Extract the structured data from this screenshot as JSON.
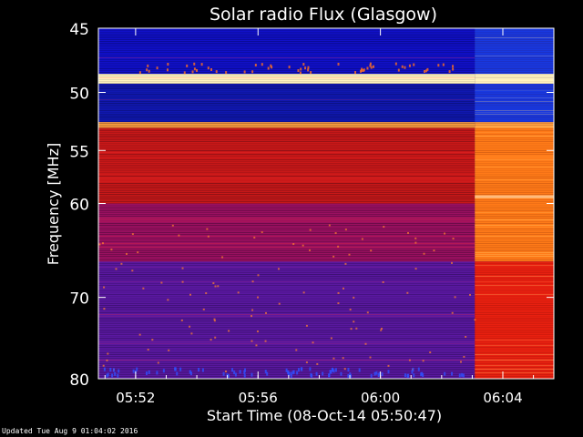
{
  "chart_data": {
    "type": "heatmap",
    "title": "Solar radio Flux (Glasgow)",
    "ylabel": "Frequency [MHz]",
    "xlabel": "Start Time (08-Oct-14 05:50:47)",
    "ylim": [
      45,
      80
    ],
    "y_scale": "log",
    "y_ticks": [
      {
        "value": 45,
        "label": "45"
      },
      {
        "value": 50,
        "label": "50"
      },
      {
        "value": 55,
        "label": "55"
      },
      {
        "value": 60,
        "label": "60"
      },
      {
        "value": 70,
        "label": "70"
      },
      {
        "value": 80,
        "label": "80"
      }
    ],
    "x_range": [
      "05:50:47",
      "06:05:40"
    ],
    "x_ticks": [
      {
        "value": "05:52",
        "label": "05:52"
      },
      {
        "value": "05:56",
        "label": "05:56"
      },
      {
        "value": "06:00",
        "label": "06:00"
      },
      {
        "value": "06:04",
        "label": "06:04"
      }
    ],
    "burst_start": "06:03:05",
    "bands_before_burst": [
      {
        "from_mhz": 45,
        "to_mhz": 48.5,
        "color": "#1010c8"
      },
      {
        "from_mhz": 48.5,
        "to_mhz": 49.3,
        "color": "#fff4c0"
      },
      {
        "from_mhz": 49.3,
        "to_mhz": 52.5,
        "color": "#1018b0"
      },
      {
        "from_mhz": 52.5,
        "to_mhz": 53.0,
        "color": "#ffa040"
      },
      {
        "from_mhz": 53.0,
        "to_mhz": 60.0,
        "color": "#c81818"
      },
      {
        "from_mhz": 60.0,
        "to_mhz": 66.0,
        "color": "#9a1060"
      },
      {
        "from_mhz": 66.0,
        "to_mhz": 80.0,
        "color": "#5a18a0"
      }
    ],
    "bands_after_burst": [
      {
        "from_mhz": 45,
        "to_mhz": 48.5,
        "color": "#1838e0"
      },
      {
        "from_mhz": 48.5,
        "to_mhz": 49.3,
        "color": "#fff4c0"
      },
      {
        "from_mhz": 49.3,
        "to_mhz": 52.5,
        "color": "#1838e0"
      },
      {
        "from_mhz": 52.5,
        "to_mhz": 53.0,
        "color": "#ffa040"
      },
      {
        "from_mhz": 53.0,
        "to_mhz": 66.0,
        "color": "#ff7a18"
      },
      {
        "from_mhz": 66.0,
        "to_mhz": 80.0,
        "color": "#e82010"
      }
    ]
  },
  "footer": {
    "updated": "Updated Tue Aug  9 01:04:02 2016"
  },
  "colors": {
    "background": "#000000",
    "axis": "#ffffff"
  }
}
